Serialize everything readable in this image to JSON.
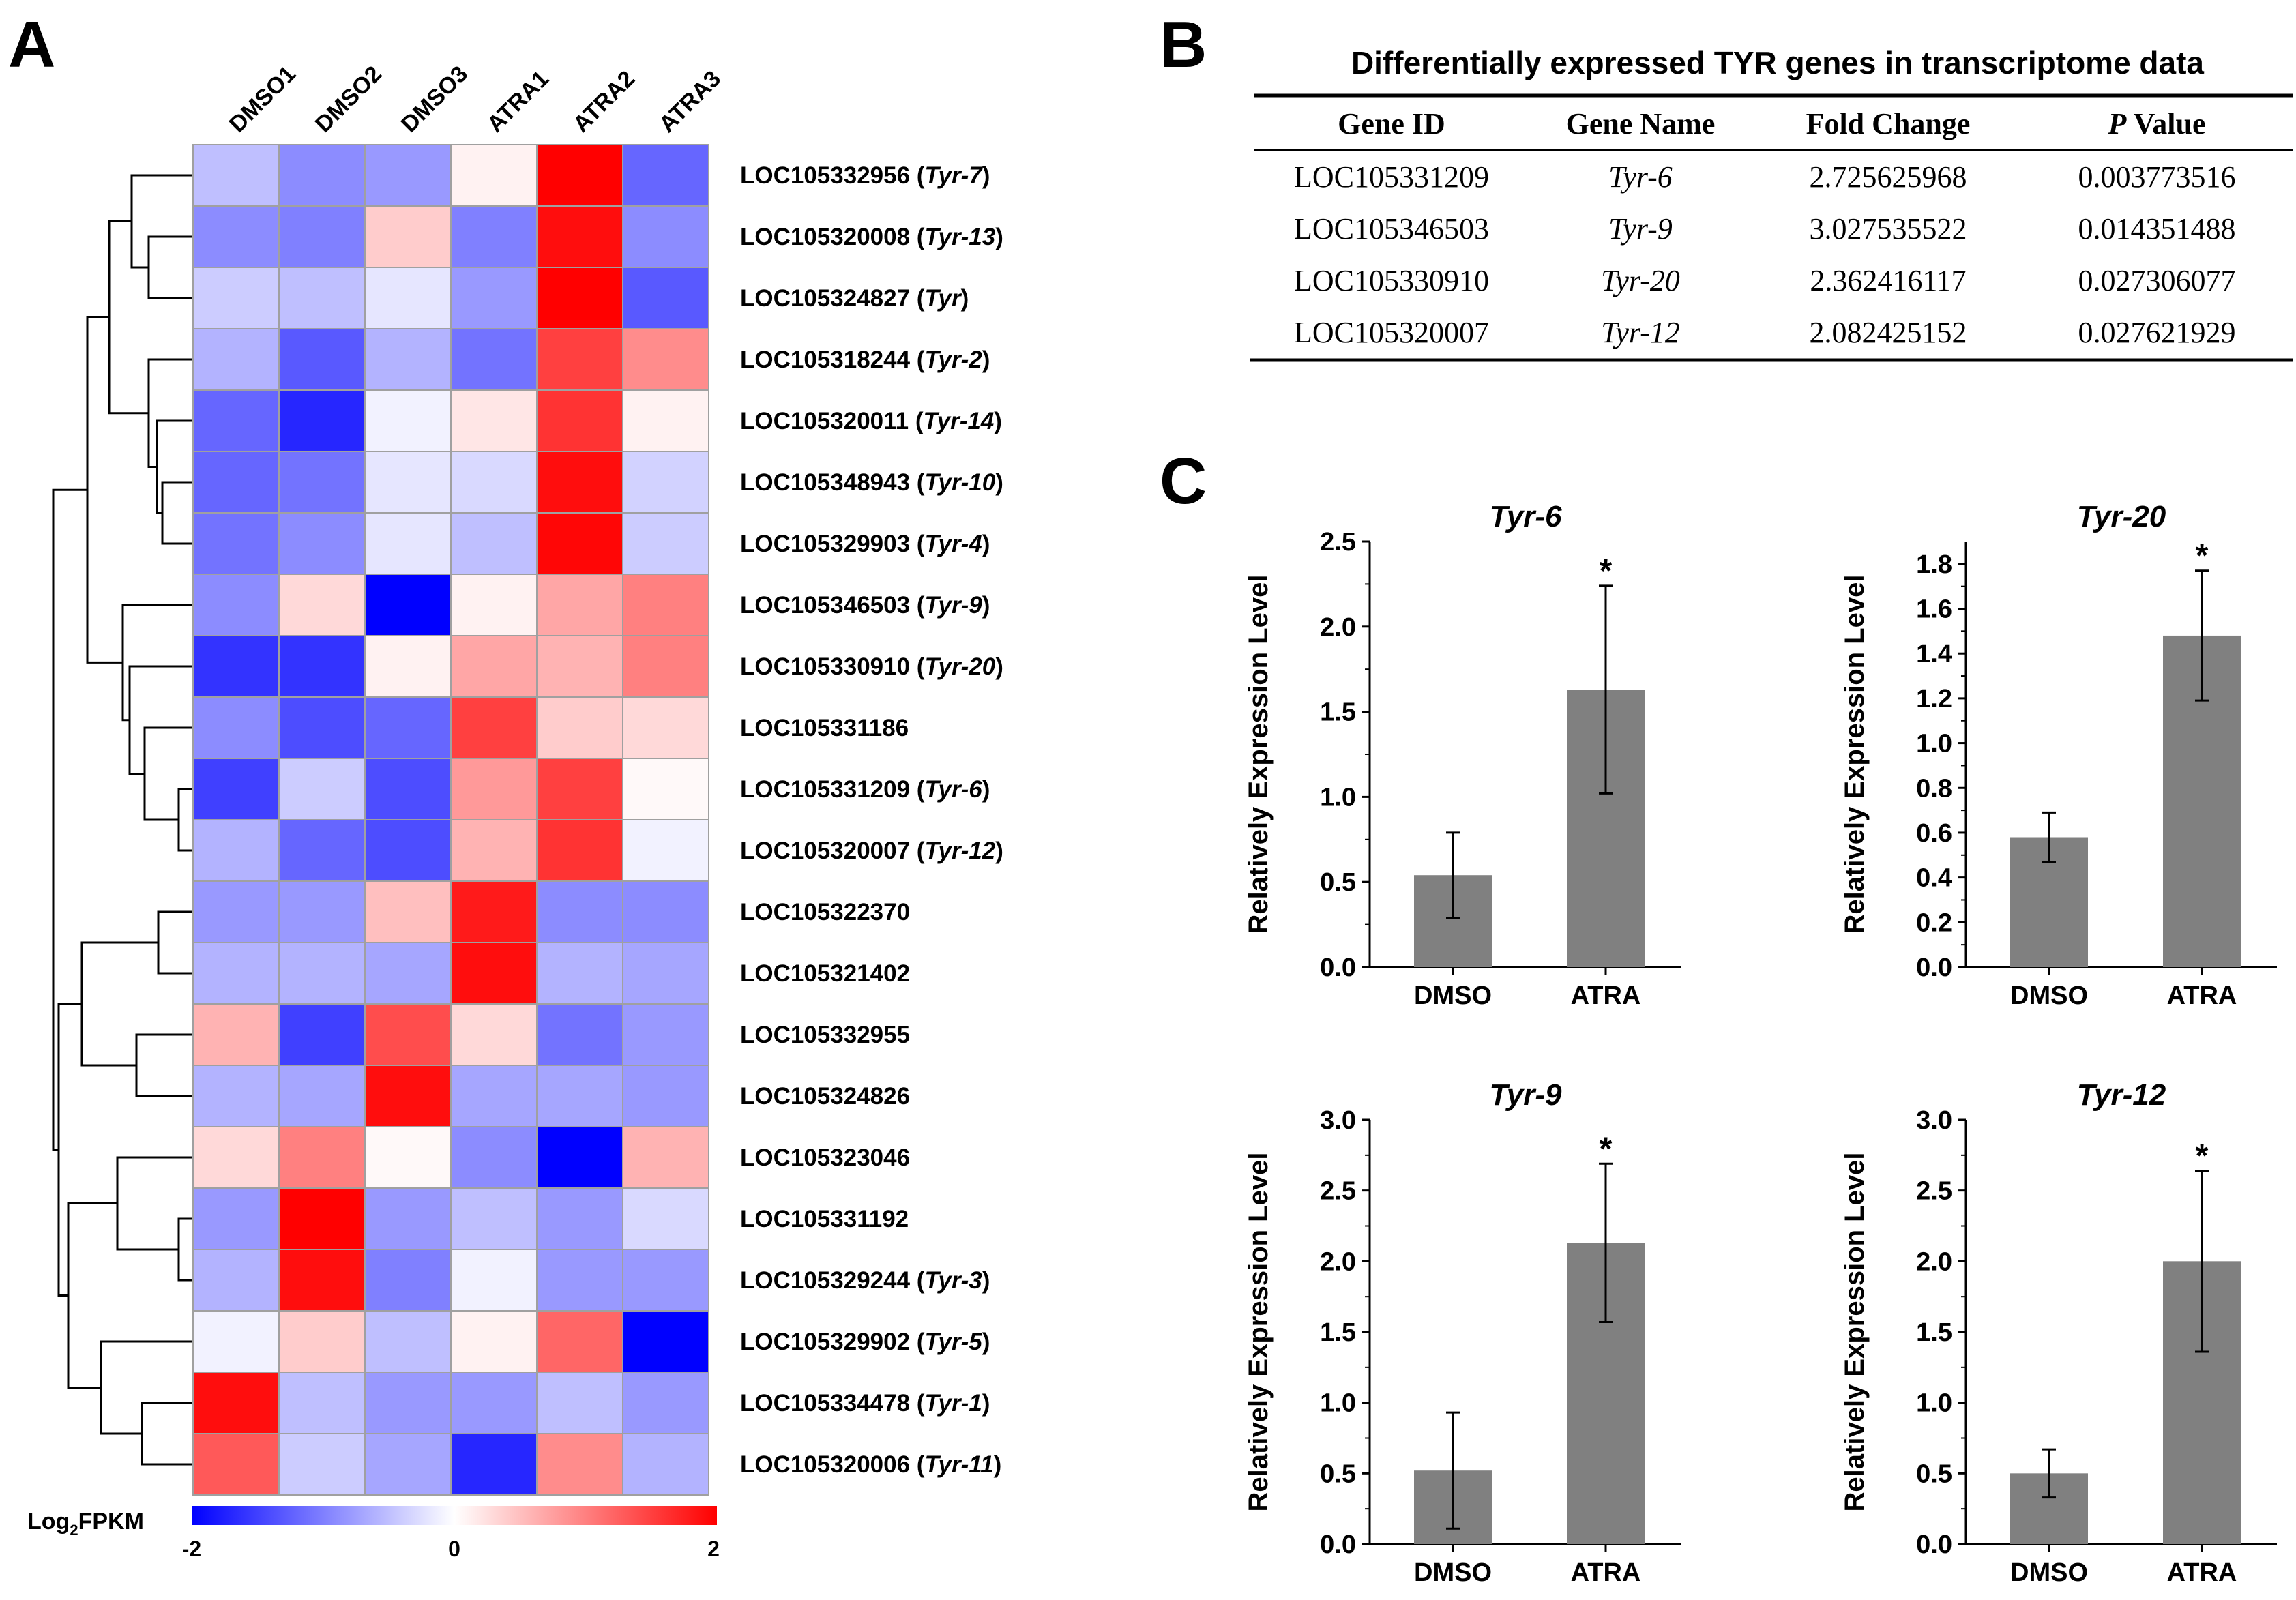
{
  "panels": {
    "a": "A",
    "b": "B",
    "c": "C"
  },
  "heatmap": {
    "samples": [
      "DMSO1",
      "DMSO2",
      "DMSO3",
      "ATRA1",
      "ATRA2",
      "ATRA3"
    ],
    "legend": {
      "title_main": "Log",
      "title_sub": "2",
      "title_rest": "FPKM",
      "min_label": "-2",
      "mid_label": "0",
      "max_label": "2",
      "min": -2,
      "max": 2,
      "low_color": "#0000ff",
      "mid_color": "#ffffff",
      "high_color": "#ff0000"
    },
    "rows": [
      {
        "id": "LOC105332956",
        "name": "Tyr-7",
        "values": [
          -0.5,
          -0.9,
          -0.8,
          0.1,
          2.0,
          -1.2
        ]
      },
      {
        "id": "LOC105320008",
        "name": "Tyr-13",
        "values": [
          -0.9,
          -1.0,
          0.4,
          -1.0,
          1.9,
          -0.9
        ]
      },
      {
        "id": "LOC105324827",
        "name": "Tyr",
        "values": [
          -0.4,
          -0.5,
          -0.2,
          -0.8,
          2.0,
          -1.3
        ]
      },
      {
        "id": "LOC105318244",
        "name": "Tyr-2",
        "values": [
          -0.6,
          -1.3,
          -0.6,
          -1.1,
          1.5,
          0.9
        ]
      },
      {
        "id": "LOC105320011",
        "name": "Tyr-14",
        "values": [
          -1.2,
          -1.7,
          -0.1,
          0.2,
          1.6,
          0.1
        ]
      },
      {
        "id": "LOC105348943",
        "name": "Tyr-10",
        "values": [
          -1.2,
          -1.1,
          -0.2,
          -0.3,
          1.9,
          -0.35
        ]
      },
      {
        "id": "LOC105329903",
        "name": "Tyr-4",
        "values": [
          -1.1,
          -0.9,
          -0.2,
          -0.5,
          1.95,
          -0.4
        ]
      },
      {
        "id": "LOC105346503",
        "name": "Tyr-9",
        "values": [
          -0.9,
          0.3,
          -2.0,
          0.1,
          0.7,
          1.0
        ]
      },
      {
        "id": "LOC105330910",
        "name": "Tyr-20",
        "values": [
          -1.6,
          -1.6,
          0.1,
          0.7,
          0.6,
          1.0
        ]
      },
      {
        "id": "LOC105331186",
        "name": "",
        "values": [
          -0.9,
          -1.4,
          -1.2,
          1.5,
          0.4,
          0.3
        ]
      },
      {
        "id": "LOC105331209",
        "name": "Tyr-6",
        "values": [
          -1.5,
          -0.4,
          -1.4,
          0.8,
          1.5,
          0.05
        ]
      },
      {
        "id": "LOC105320007",
        "name": "Tyr-12",
        "values": [
          -0.6,
          -1.2,
          -1.4,
          0.6,
          1.6,
          -0.1
        ]
      },
      {
        "id": "LOC105322370",
        "name": "",
        "values": [
          -0.8,
          -0.8,
          0.5,
          1.8,
          -0.9,
          -0.9
        ]
      },
      {
        "id": "LOC105321402",
        "name": "",
        "values": [
          -0.6,
          -0.6,
          -0.7,
          1.9,
          -0.6,
          -0.7
        ]
      },
      {
        "id": "LOC105332955",
        "name": "",
        "values": [
          0.6,
          -1.5,
          1.4,
          0.3,
          -1.1,
          -0.8
        ]
      },
      {
        "id": "LOC105324826",
        "name": "",
        "values": [
          -0.6,
          -0.7,
          1.9,
          -0.7,
          -0.7,
          -0.8
        ]
      },
      {
        "id": "LOC105323046",
        "name": "",
        "values": [
          0.3,
          1.0,
          0.05,
          -0.9,
          -2.0,
          0.6
        ]
      },
      {
        "id": "LOC105331192",
        "name": "",
        "values": [
          -0.8,
          2.0,
          -0.8,
          -0.5,
          -0.8,
          -0.3
        ]
      },
      {
        "id": "LOC105329244",
        "name": "Tyr-3",
        "values": [
          -0.6,
          1.9,
          -1.0,
          -0.1,
          -0.8,
          -0.8
        ]
      },
      {
        "id": "LOC105329902",
        "name": "Tyr-5",
        "values": [
          -0.1,
          0.4,
          -0.5,
          0.1,
          1.2,
          -2.0
        ]
      },
      {
        "id": "LOC105334478",
        "name": "Tyr-1",
        "values": [
          1.9,
          -0.5,
          -0.8,
          -0.8,
          -0.5,
          -0.8
        ]
      },
      {
        "id": "LOC105320006",
        "name": "Tyr-11",
        "values": [
          1.3,
          -0.4,
          -0.7,
          -1.7,
          0.9,
          -0.6
        ]
      }
    ]
  },
  "table": {
    "title": "Differentially expressed TYR genes in transcriptome data",
    "headers": {
      "gene_id": "Gene ID",
      "gene_name": "Gene Name",
      "fold_change": "Fold Change",
      "p_value_italic": "P",
      "p_value_rest": " Value"
    },
    "rows": [
      {
        "gene_id": "LOC105331209",
        "gene_name": "Tyr-6",
        "fold_change": "2.725625968",
        "p_value": "0.003773516"
      },
      {
        "gene_id": "LOC105346503",
        "gene_name": "Tyr-9",
        "fold_change": "3.027535522",
        "p_value": "0.014351488"
      },
      {
        "gene_id": "LOC105330910",
        "gene_name": "Tyr-20",
        "fold_change": "2.362416117",
        "p_value": "0.027306077"
      },
      {
        "gene_id": "LOC105320007",
        "gene_name": "Tyr-12",
        "fold_change": "2.082425152",
        "p_value": "0.027621929"
      }
    ]
  },
  "chart_data": [
    {
      "type": "bar",
      "title": "Tyr-6",
      "categories": [
        "DMSO",
        "ATRA"
      ],
      "values": [
        0.54,
        1.63
      ],
      "errors": [
        0.25,
        0.61
      ],
      "significance": [
        "",
        "*"
      ],
      "xlabel": "",
      "ylabel": "Relatively Expression Level",
      "ylim": [
        0,
        2.5
      ],
      "yticks": [
        "0.0",
        "0.5",
        "1.0",
        "1.5",
        "2.0",
        "2.5"
      ],
      "bar_color": "#808080"
    },
    {
      "type": "bar",
      "title": "Tyr-20",
      "categories": [
        "DMSO",
        "ATRA"
      ],
      "values": [
        0.58,
        1.48
      ],
      "errors": [
        0.11,
        0.29
      ],
      "significance": [
        "",
        "*"
      ],
      "xlabel": "",
      "ylabel": "Relatively Expression Level",
      "ylim": [
        0,
        1.9
      ],
      "yticks": [
        "0.0",
        "0.2",
        "0.4",
        "0.6",
        "0.8",
        "1.0",
        "1.2",
        "1.4",
        "1.6",
        "1.8"
      ],
      "bar_color": "#808080"
    },
    {
      "type": "bar",
      "title": "Tyr-9",
      "categories": [
        "DMSO",
        "ATRA"
      ],
      "values": [
        0.52,
        2.13
      ],
      "errors": [
        0.41,
        0.56
      ],
      "significance": [
        "",
        "*"
      ],
      "xlabel": "",
      "ylabel": "Relatively Expression Level",
      "ylim": [
        0,
        3.0
      ],
      "yticks": [
        "0.0",
        "0.5",
        "1.0",
        "1.5",
        "2.0",
        "2.5",
        "3.0"
      ],
      "bar_color": "#808080"
    },
    {
      "type": "bar",
      "title": "Tyr-12",
      "categories": [
        "DMSO",
        "ATRA"
      ],
      "values": [
        0.5,
        2.0
      ],
      "errors": [
        0.17,
        0.64
      ],
      "significance": [
        "",
        "*"
      ],
      "xlabel": "",
      "ylabel": "Relatively Expression Level",
      "ylim": [
        0,
        3.0
      ],
      "yticks": [
        "0.0",
        "0.5",
        "1.0",
        "1.5",
        "2.0",
        "2.5",
        "3.0"
      ],
      "bar_color": "#808080"
    }
  ]
}
